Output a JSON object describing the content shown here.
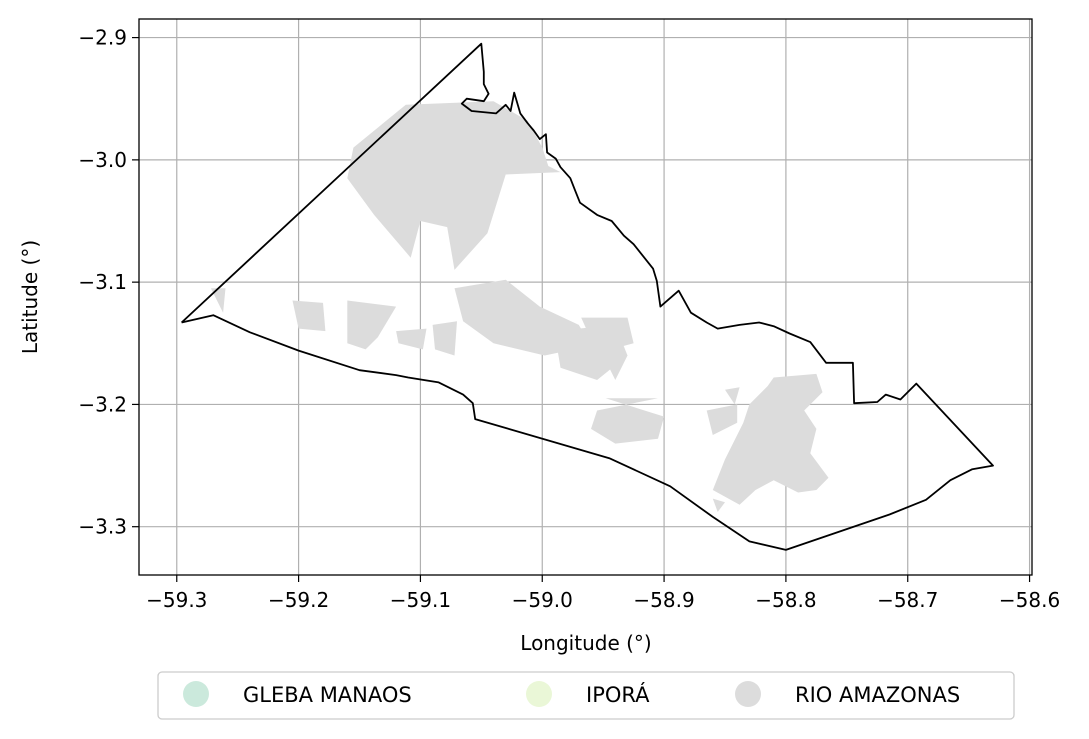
{
  "chart_data": {
    "type": "map",
    "xlabel": "Longitude (°)",
    "ylabel": "Latitude (°)",
    "xlim": [
      -59.331,
      -58.598
    ],
    "ylim": [
      -3.3395,
      -2.8848
    ],
    "x_ticks": [
      "−59.3",
      "−59.2",
      "−59.1",
      "−59.0",
      "−58.9",
      "−58.8",
      "−58.7",
      "−58.6"
    ],
    "x_tick_values": [
      -59.3,
      -59.2,
      -59.1,
      -59.0,
      -58.9,
      -58.8,
      -58.7,
      -58.6
    ],
    "y_ticks": [
      "−2.9",
      "−3.0",
      "−3.1",
      "−3.2",
      "−3.3"
    ],
    "y_tick_values": [
      -2.9,
      -3.0,
      -3.1,
      -3.2,
      -3.3
    ],
    "grid": true,
    "legend": {
      "placement": "bottom-center",
      "entries": [
        {
          "label": "GLEBA MANAOS",
          "color": "#cbe9dc"
        },
        {
          "label": "IPORÁ",
          "color": "#eaf7d7"
        },
        {
          "label": "RIO AMAZONAS",
          "color": "#dcdcdc"
        }
      ]
    },
    "boundary_color": "#000000",
    "boundary": [
      [
        -59.296,
        -3.133
      ],
      [
        -59.05,
        -2.905
      ],
      [
        -59.048,
        -2.928
      ],
      [
        -59.048,
        -2.938
      ],
      [
        -59.044,
        -2.946
      ],
      [
        -59.048,
        -2.952
      ],
      [
        -59.062,
        -2.95
      ],
      [
        -59.066,
        -2.954
      ],
      [
        -59.058,
        -2.96
      ],
      [
        -59.038,
        -2.962
      ],
      [
        -59.03,
        -2.955
      ],
      [
        -59.026,
        -2.96
      ],
      [
        -59.023,
        -2.945
      ],
      [
        -59.018,
        -2.962
      ],
      [
        -59.012,
        -2.97
      ],
      [
        -59.007,
        -2.976
      ],
      [
        -59.002,
        -2.983
      ],
      [
        -58.997,
        -2.979
      ],
      [
        -58.996,
        -2.994
      ],
      [
        -58.989,
        -2.999
      ],
      [
        -58.985,
        -3.006
      ],
      [
        -58.977,
        -3.015
      ],
      [
        -58.973,
        -3.025
      ],
      [
        -58.969,
        -3.035
      ],
      [
        -58.955,
        -3.045
      ],
      [
        -58.943,
        -3.05
      ],
      [
        -58.933,
        -3.062
      ],
      [
        -58.925,
        -3.069
      ],
      [
        -58.909,
        -3.089
      ],
      [
        -58.906,
        -3.099
      ],
      [
        -58.903,
        -3.12
      ],
      [
        -58.888,
        -3.107
      ],
      [
        -58.878,
        -3.125
      ],
      [
        -58.865,
        -3.133
      ],
      [
        -58.856,
        -3.138
      ],
      [
        -58.838,
        -3.135
      ],
      [
        -58.822,
        -3.133
      ],
      [
        -58.81,
        -3.136
      ],
      [
        -58.797,
        -3.142
      ],
      [
        -58.78,
        -3.149
      ],
      [
        -58.767,
        -3.166
      ],
      [
        -58.745,
        -3.166
      ],
      [
        -58.744,
        -3.199
      ],
      [
        -58.725,
        -3.198
      ],
      [
        -58.718,
        -3.192
      ],
      [
        -58.706,
        -3.196
      ],
      [
        -58.693,
        -3.183
      ],
      [
        -58.63,
        -3.25
      ],
      [
        -58.647,
        -3.253
      ],
      [
        -58.665,
        -3.262
      ],
      [
        -58.685,
        -3.278
      ],
      [
        -58.715,
        -3.29
      ],
      [
        -58.8,
        -3.319
      ],
      [
        -58.83,
        -3.312
      ],
      [
        -58.86,
        -3.292
      ],
      [
        -58.895,
        -3.267
      ],
      [
        -58.945,
        -3.244
      ],
      [
        -59.055,
        -3.212
      ],
      [
        -59.057,
        -3.199
      ],
      [
        -59.065,
        -3.192
      ],
      [
        -59.085,
        -3.182
      ],
      [
        -59.11,
        -3.178
      ],
      [
        -59.12,
        -3.176
      ],
      [
        -59.15,
        -3.172
      ],
      [
        -59.2,
        -3.156
      ],
      [
        -59.24,
        -3.141
      ],
      [
        -59.27,
        -3.127
      ],
      [
        -59.296,
        -3.133
      ]
    ],
    "regions": [
      {
        "name": "RIO AMAZONAS",
        "polygons": [
          [
            [
              -59.112,
              -2.955
            ],
            [
              -59.04,
              -2.952
            ],
            [
              -59.012,
              -2.968
            ],
            [
              -59.0,
              -2.99
            ],
            [
              -58.995,
              -3.005
            ],
            [
              -58.985,
              -3.01
            ],
            [
              -59.03,
              -3.012
            ],
            [
              -59.045,
              -3.06
            ],
            [
              -59.072,
              -3.09
            ],
            [
              -59.078,
              -3.055
            ],
            [
              -59.1,
              -3.05
            ],
            [
              -59.108,
              -3.08
            ],
            [
              -59.12,
              -3.066
            ],
            [
              -59.138,
              -3.045
            ],
            [
              -59.16,
              -3.015
            ],
            [
              -59.155,
              -2.99
            ]
          ],
          [
            [
              -59.072,
              -3.105
            ],
            [
              -59.03,
              -3.098
            ],
            [
              -59.002,
              -3.12
            ],
            [
              -58.97,
              -3.135
            ],
            [
              -58.96,
              -3.152
            ],
            [
              -58.998,
              -3.16
            ],
            [
              -59.04,
              -3.15
            ],
            [
              -59.065,
              -3.132
            ]
          ],
          [
            [
              -58.968,
              -3.129
            ],
            [
              -58.93,
              -3.129
            ],
            [
              -58.925,
              -3.15
            ],
            [
              -58.955,
              -3.158
            ]
          ],
          [
            [
              -58.99,
              -3.14
            ],
            [
              -58.94,
              -3.135
            ],
            [
              -58.93,
              -3.16
            ],
            [
              -58.955,
              -3.18
            ],
            [
              -58.985,
              -3.17
            ]
          ],
          [
            [
              -59.16,
              -3.115
            ],
            [
              -59.12,
              -3.12
            ],
            [
              -59.135,
              -3.145
            ],
            [
              -59.145,
              -3.155
            ],
            [
              -59.16,
              -3.15
            ]
          ],
          [
            [
              -59.205,
              -3.115
            ],
            [
              -59.18,
              -3.117
            ],
            [
              -59.178,
              -3.14
            ],
            [
              -59.2,
              -3.138
            ]
          ],
          [
            [
              -59.272,
              -3.105
            ],
            [
              -59.26,
              -3.105
            ],
            [
              -59.262,
              -3.125
            ]
          ],
          [
            [
              -59.12,
              -3.14
            ],
            [
              -59.095,
              -3.138
            ],
            [
              -59.098,
              -3.155
            ],
            [
              -59.118,
              -3.15
            ]
          ],
          [
            [
              -59.09,
              -3.135
            ],
            [
              -59.07,
              -3.132
            ],
            [
              -59.072,
              -3.16
            ],
            [
              -59.088,
              -3.155
            ]
          ],
          [
            [
              -58.95,
              -3.16
            ],
            [
              -58.93,
              -3.16
            ],
            [
              -58.94,
              -3.18
            ]
          ],
          [
            [
              -58.948,
              -3.195
            ],
            [
              -58.905,
              -3.195
            ],
            [
              -58.93,
              -3.2
            ],
            [
              -58.955,
              -3.205
            ],
            [
              -58.96,
              -3.22
            ],
            [
              -58.94,
              -3.232
            ],
            [
              -58.905,
              -3.228
            ],
            [
              -58.9,
              -3.21
            ]
          ],
          [
            [
              -58.865,
              -3.205
            ],
            [
              -58.84,
              -3.2
            ],
            [
              -58.84,
              -3.215
            ],
            [
              -58.86,
              -3.225
            ]
          ],
          [
            [
              -58.81,
              -3.178
            ],
            [
              -58.775,
              -3.175
            ],
            [
              -58.77,
              -3.19
            ],
            [
              -58.785,
              -3.205
            ],
            [
              -58.775,
              -3.22
            ],
            [
              -58.78,
              -3.24
            ],
            [
              -58.765,
              -3.26
            ],
            [
              -58.775,
              -3.27
            ],
            [
              -58.79,
              -3.272
            ],
            [
              -58.81,
              -3.262
            ],
            [
              -58.825,
              -3.27
            ],
            [
              -58.838,
              -3.282
            ],
            [
              -58.86,
              -3.27
            ],
            [
              -58.85,
              -3.245
            ],
            [
              -58.835,
              -3.215
            ],
            [
              -58.83,
              -3.2
            ],
            [
              -58.815,
              -3.185
            ]
          ],
          [
            [
              -58.85,
              -3.188
            ],
            [
              -58.838,
              -3.186
            ],
            [
              -58.842,
              -3.2
            ]
          ],
          [
            [
              -58.86,
              -3.277
            ],
            [
              -58.85,
              -3.28
            ],
            [
              -58.856,
              -3.288
            ]
          ]
        ]
      }
    ]
  }
}
